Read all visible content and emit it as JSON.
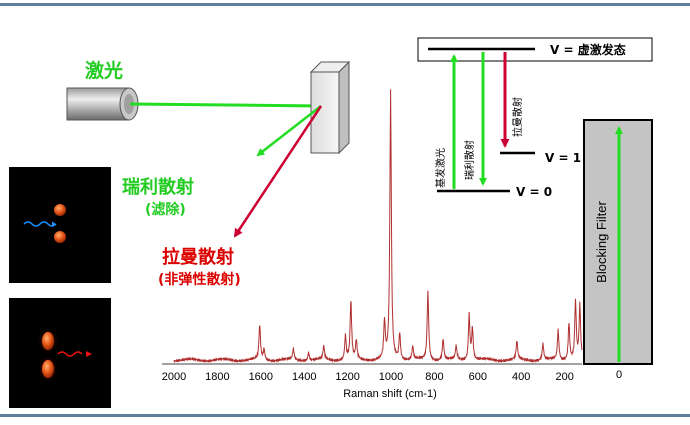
{
  "labels": {
    "laser": "激光",
    "rayleigh": "瑞利散射",
    "rayleigh_note": "(滤除)",
    "raman": "拉曼散射",
    "raman_note": "(非弹性散射)",
    "virtual_state": "V = 虚激发态",
    "v1": "V = 1",
    "v0": "V = 0",
    "excitation": "基发激光",
    "rayleigh_small": "瑞利散射",
    "raman_small": "拉曼散射",
    "blocking_filter": "Blocking Filter",
    "filter_zero": "0",
    "x_axis_label": "Raman shift (cm-1)"
  },
  "colors": {
    "green": "#22dd22",
    "red": "#cc0033",
    "red_text": "#dd0000",
    "spectrum": "#b03030",
    "filter_fill": "#c4c4c4"
  },
  "chart_data": {
    "type": "line",
    "x_reversed": true,
    "xlim": [
      2000,
      120
    ],
    "ylim": [
      0,
      100
    ],
    "xticks": [
      2000,
      1800,
      1600,
      1400,
      1200,
      1000,
      800,
      600,
      400,
      200
    ],
    "xlabel": "Raman shift (cm-1)",
    "baseline": 1.5,
    "peaks": [
      {
        "x": 1605,
        "h": 13
      },
      {
        "x": 1585,
        "h": 4
      },
      {
        "x": 1450,
        "h": 4
      },
      {
        "x": 1380,
        "h": 3
      },
      {
        "x": 1310,
        "h": 5
      },
      {
        "x": 1210,
        "h": 9
      },
      {
        "x": 1185,
        "h": 22
      },
      {
        "x": 1160,
        "h": 7
      },
      {
        "x": 1030,
        "h": 14
      },
      {
        "x": 1002,
        "h": 100
      },
      {
        "x": 960,
        "h": 10
      },
      {
        "x": 900,
        "h": 5
      },
      {
        "x": 830,
        "h": 26
      },
      {
        "x": 760,
        "h": 8
      },
      {
        "x": 700,
        "h": 5
      },
      {
        "x": 640,
        "h": 17
      },
      {
        "x": 625,
        "h": 12
      },
      {
        "x": 420,
        "h": 7
      },
      {
        "x": 300,
        "h": 6
      },
      {
        "x": 230,
        "h": 11
      },
      {
        "x": 180,
        "h": 14
      },
      {
        "x": 150,
        "h": 22
      },
      {
        "x": 130,
        "h": 20
      }
    ]
  }
}
